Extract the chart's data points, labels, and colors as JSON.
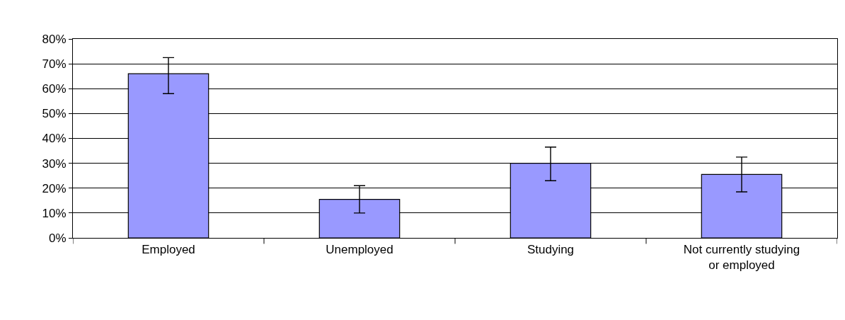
{
  "chart_data": {
    "type": "bar",
    "categories": [
      "Employed",
      "Unemployed",
      "Studying",
      "Not currently studying\nor employed"
    ],
    "values": [
      66,
      15.5,
      30,
      25.5
    ],
    "errors": [
      [
        58,
        72.5
      ],
      [
        10,
        21
      ],
      [
        23,
        36.5
      ],
      [
        18.5,
        32.5
      ]
    ],
    "color": "#9999ff",
    "ylim": [
      0,
      80
    ],
    "yticks": [
      {
        "value": 0,
        "label": "0%"
      },
      {
        "value": 10,
        "label": "10%"
      },
      {
        "value": 20,
        "label": "20%"
      },
      {
        "value": 30,
        "label": "30%"
      },
      {
        "value": 40,
        "label": "40%"
      },
      {
        "value": 50,
        "label": "50%"
      },
      {
        "value": 60,
        "label": "60%"
      },
      {
        "value": 70,
        "label": "70%"
      },
      {
        "value": 80,
        "label": "80%"
      }
    ],
    "grid": "y",
    "legend": false
  }
}
